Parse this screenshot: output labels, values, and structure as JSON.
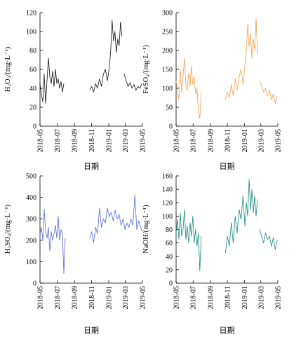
{
  "chart_data": [
    {
      "type": "line",
      "ylabel": "H₂O₂/(mg·L⁻¹)",
      "xlabel": "日期",
      "color": "#111111",
      "ylim": [
        0,
        120
      ],
      "yticks": [
        0,
        20,
        40,
        60,
        80,
        100,
        120
      ],
      "xlim": [
        "2018-05",
        "2019-05"
      ],
      "xticks": [
        "2018-05",
        "2018-07",
        "2018-09",
        "2018-11",
        "2019-01",
        "2019-03",
        "2019-05"
      ],
      "segments": [
        {
          "x": [
            "2018-05-01",
            "2018-05-06",
            "2018-05-11",
            "2018-05-16",
            "2018-05-21",
            "2018-05-26",
            "2018-05-31",
            "2018-06-05",
            "2018-06-10",
            "2018-06-15",
            "2018-06-20",
            "2018-06-25",
            "2018-06-30",
            "2018-07-05",
            "2018-07-10",
            "2018-07-15",
            "2018-07-20",
            "2018-07-25"
          ],
          "y": [
            45,
            33,
            26,
            55,
            24,
            48,
            72,
            52,
            45,
            58,
            42,
            60,
            45,
            50,
            40,
            47,
            36,
            45
          ]
        },
        {
          "x": [
            "2018-10-25",
            "2018-11-01",
            "2018-11-08",
            "2018-11-15",
            "2018-11-22",
            "2018-11-29",
            "2018-12-06",
            "2018-12-13",
            "2018-12-20",
            "2018-12-27",
            "2019-01-03",
            "2019-01-08",
            "2019-01-13",
            "2019-01-18",
            "2019-01-23",
            "2019-01-28",
            "2019-02-02",
            "2019-02-07",
            "2019-02-12",
            "2019-02-17"
          ],
          "y": [
            38,
            42,
            36,
            45,
            40,
            50,
            42,
            55,
            60,
            48,
            62,
            80,
            112,
            90,
            100,
            78,
            92,
            85,
            110,
            95
          ]
        },
        {
          "x": [
            "2019-02-25",
            "2019-03-04",
            "2019-03-11",
            "2019-03-18",
            "2019-03-25",
            "2019-04-01",
            "2019-04-08",
            "2019-04-15",
            "2019-04-22",
            "2019-04-29"
          ],
          "y": [
            55,
            48,
            42,
            46,
            40,
            44,
            38,
            42,
            40,
            45
          ]
        }
      ]
    },
    {
      "type": "line",
      "ylabel": "FeSO₄/(mg·L⁻¹)",
      "xlabel": "日期",
      "color": "#f0a050",
      "ylim": [
        0,
        300
      ],
      "yticks": [
        0,
        50,
        100,
        150,
        200,
        250,
        300
      ],
      "xlim": [
        "2018-05",
        "2019-05"
      ],
      "xticks": [
        "2018-05",
        "2018-07",
        "2018-09",
        "2018-11",
        "2019-01",
        "2019-03",
        "2019-05"
      ],
      "segments": [
        {
          "x": [
            "2018-05-01",
            "2018-05-06",
            "2018-05-11",
            "2018-05-16",
            "2018-05-21",
            "2018-05-26",
            "2018-05-31",
            "2018-06-05",
            "2018-06-10",
            "2018-06-15",
            "2018-06-20",
            "2018-06-25",
            "2018-06-30",
            "2018-07-05",
            "2018-07-10",
            "2018-07-15",
            "2018-07-20",
            "2018-07-25",
            "2018-07-30"
          ],
          "y": [
            120,
            95,
            70,
            150,
            90,
            130,
            180,
            110,
            95,
            140,
            105,
            160,
            110,
            130,
            85,
            100,
            40,
            20,
            90
          ]
        },
        {
          "x": [
            "2018-10-25",
            "2018-11-01",
            "2018-11-08",
            "2018-11-15",
            "2018-11-22",
            "2018-11-29",
            "2018-12-06",
            "2018-12-13",
            "2018-12-20",
            "2018-12-27",
            "2019-01-03",
            "2019-01-08",
            "2019-01-13",
            "2019-01-18",
            "2019-01-23",
            "2019-01-28",
            "2019-02-02",
            "2019-02-07",
            "2019-02-12",
            "2019-02-17"
          ],
          "y": [
            70,
            90,
            75,
            110,
            80,
            125,
            95,
            130,
            150,
            110,
            160,
            200,
            270,
            210,
            245,
            180,
            230,
            200,
            285,
            190
          ]
        },
        {
          "x": [
            "2019-02-25",
            "2019-03-04",
            "2019-03-11",
            "2019-03-18",
            "2019-03-25",
            "2019-04-01",
            "2019-04-08",
            "2019-04-15",
            "2019-04-22",
            "2019-04-29"
          ],
          "y": [
            120,
            105,
            90,
            100,
            80,
            95,
            70,
            85,
            60,
            80
          ]
        }
      ]
    },
    {
      "type": "line",
      "ylabel": "H₂SO₄/(mg·L⁻¹)",
      "xlabel": "日期",
      "color": "#5566dd",
      "ylim": [
        0,
        500
      ],
      "yticks": [
        0,
        100,
        200,
        300,
        400,
        500
      ],
      "xlim": [
        "2018-05",
        "2019-05"
      ],
      "xticks": [
        "2018-05",
        "2018-07",
        "2018-09",
        "2018-11",
        "2019-01",
        "2019-03",
        "2019-05"
      ],
      "segments": [
        {
          "x": [
            "2018-05-01",
            "2018-05-06",
            "2018-05-11",
            "2018-05-16",
            "2018-05-21",
            "2018-05-26",
            "2018-05-31",
            "2018-06-05",
            "2018-06-10",
            "2018-06-15",
            "2018-06-20",
            "2018-06-25",
            "2018-06-30",
            "2018-07-05",
            "2018-07-10",
            "2018-07-15",
            "2018-07-20",
            "2018-07-25",
            "2018-07-30"
          ],
          "y": [
            230,
            260,
            200,
            345,
            240,
            210,
            260,
            150,
            240,
            200,
            230,
            270,
            210,
            310,
            200,
            250,
            230,
            45,
            210
          ]
        },
        {
          "x": [
            "2018-10-25",
            "2018-11-01",
            "2018-11-08",
            "2018-11-15",
            "2018-11-22",
            "2018-11-29",
            "2018-12-06",
            "2018-12-13",
            "2018-12-20",
            "2018-12-27",
            "2019-01-03",
            "2019-01-10",
            "2019-01-17",
            "2019-01-24",
            "2019-01-31",
            "2019-02-07",
            "2019-02-14",
            "2019-02-21",
            "2019-02-28",
            "2019-03-07",
            "2019-03-14",
            "2019-03-21",
            "2019-03-28",
            "2019-04-04",
            "2019-04-11",
            "2019-04-18",
            "2019-04-25",
            "2019-04-30"
          ],
          "y": [
            210,
            240,
            190,
            260,
            230,
            350,
            260,
            300,
            280,
            350,
            310,
            330,
            290,
            340,
            300,
            320,
            270,
            300,
            250,
            280,
            260,
            300,
            270,
            410,
            250,
            290,
            260,
            240
          ]
        }
      ]
    },
    {
      "type": "line",
      "ylabel": "NaOH/(mg·L⁻¹)",
      "xlabel": "日期",
      "color": "#1a8a80",
      "ylim": [
        0,
        160
      ],
      "yticks": [
        0,
        20,
        40,
        60,
        80,
        100,
        120,
        140,
        160
      ],
      "xlim": [
        "2018-05",
        "2019-05"
      ],
      "xticks": [
        "2018-05",
        "2018-07",
        "2018-09",
        "2018-11",
        "2019-01",
        "2019-03",
        "2019-05"
      ],
      "segments": [
        {
          "x": [
            "2018-05-01",
            "2018-05-06",
            "2018-05-11",
            "2018-05-16",
            "2018-05-21",
            "2018-05-26",
            "2018-05-31",
            "2018-06-05",
            "2018-06-10",
            "2018-06-15",
            "2018-06-20",
            "2018-06-25",
            "2018-06-30",
            "2018-07-05",
            "2018-07-10",
            "2018-07-15",
            "2018-07-20",
            "2018-07-25",
            "2018-07-30"
          ],
          "y": [
            75,
            95,
            65,
            105,
            70,
            80,
            110,
            65,
            85,
            60,
            90,
            70,
            100,
            60,
            80,
            55,
            75,
            18,
            70
          ]
        },
        {
          "x": [
            "2018-10-25",
            "2018-11-01",
            "2018-11-08",
            "2018-11-15",
            "2018-11-22",
            "2018-11-29",
            "2018-12-06",
            "2018-12-13",
            "2018-12-20",
            "2018-12-27",
            "2019-01-03",
            "2019-01-08",
            "2019-01-13",
            "2019-01-18",
            "2019-01-23",
            "2019-01-28",
            "2019-02-02",
            "2019-02-07",
            "2019-02-12",
            "2019-02-17"
          ],
          "y": [
            45,
            70,
            55,
            90,
            60,
            100,
            75,
            110,
            95,
            130,
            85,
            120,
            100,
            155,
            110,
            140,
            105,
            130,
            100,
            125
          ]
        },
        {
          "x": [
            "2019-02-25",
            "2019-03-04",
            "2019-03-11",
            "2019-03-18",
            "2019-03-25",
            "2019-04-01",
            "2019-04-08",
            "2019-04-15",
            "2019-04-22",
            "2019-04-29"
          ],
          "y": [
            80,
            70,
            60,
            75,
            65,
            70,
            55,
            68,
            50,
            65
          ]
        }
      ]
    }
  ]
}
